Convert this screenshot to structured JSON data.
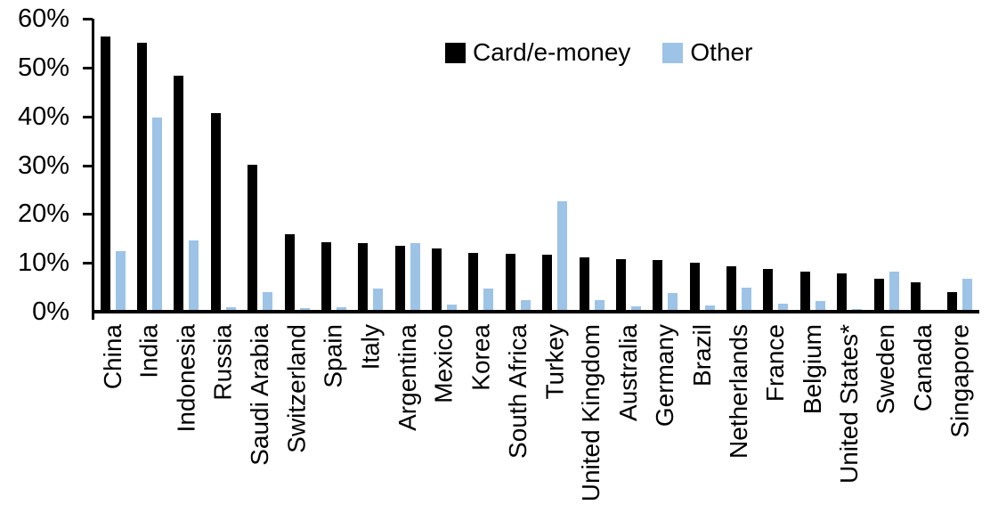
{
  "chart_data": {
    "type": "bar",
    "title": "",
    "xlabel": "",
    "ylabel": "",
    "ylim": [
      0,
      60
    ],
    "y_ticks": [
      {
        "value": 0,
        "label": "0%"
      },
      {
        "value": 10,
        "label": "10%"
      },
      {
        "value": 20,
        "label": "20%"
      },
      {
        "value": 30,
        "label": "30%"
      },
      {
        "value": 40,
        "label": "40%"
      },
      {
        "value": 50,
        "label": "50%"
      },
      {
        "value": 60,
        "label": "60%"
      }
    ],
    "grid": false,
    "legend_position": "top-center",
    "categories": [
      "China",
      "India",
      "Indonesia",
      "Russia",
      "Saudi Arabia",
      "Switzerland",
      "Spain",
      "Italy",
      "Argentina",
      "Mexico",
      "Korea",
      "South Africa",
      "Turkey",
      "United Kingdom",
      "Australia",
      "Germany",
      "Brazil",
      "Netherlands",
      "France",
      "Belgium",
      "United States*",
      "Sweden",
      "Canada",
      "Singapore"
    ],
    "series": [
      {
        "name": "Card/e-money",
        "color": "#000000",
        "values": [
          56.3,
          55.1,
          48.4,
          40.6,
          30.0,
          15.8,
          14.3,
          14.1,
          13.5,
          12.9,
          12.1,
          11.8,
          11.7,
          11.1,
          10.8,
          10.6,
          10.0,
          9.3,
          8.7,
          8.2,
          7.9,
          6.7,
          6.0,
          4.0
        ]
      },
      {
        "name": "Other",
        "color": "#9DC3E6",
        "values": [
          12.4,
          39.8,
          14.6,
          1.0,
          4.0,
          0.8,
          1.0,
          4.7,
          14.0,
          1.4,
          4.7,
          2.4,
          22.7,
          2.4,
          1.1,
          3.9,
          1.2,
          5.0,
          1.6,
          2.1,
          0.6,
          8.2,
          0.0,
          6.8
        ]
      }
    ]
  }
}
